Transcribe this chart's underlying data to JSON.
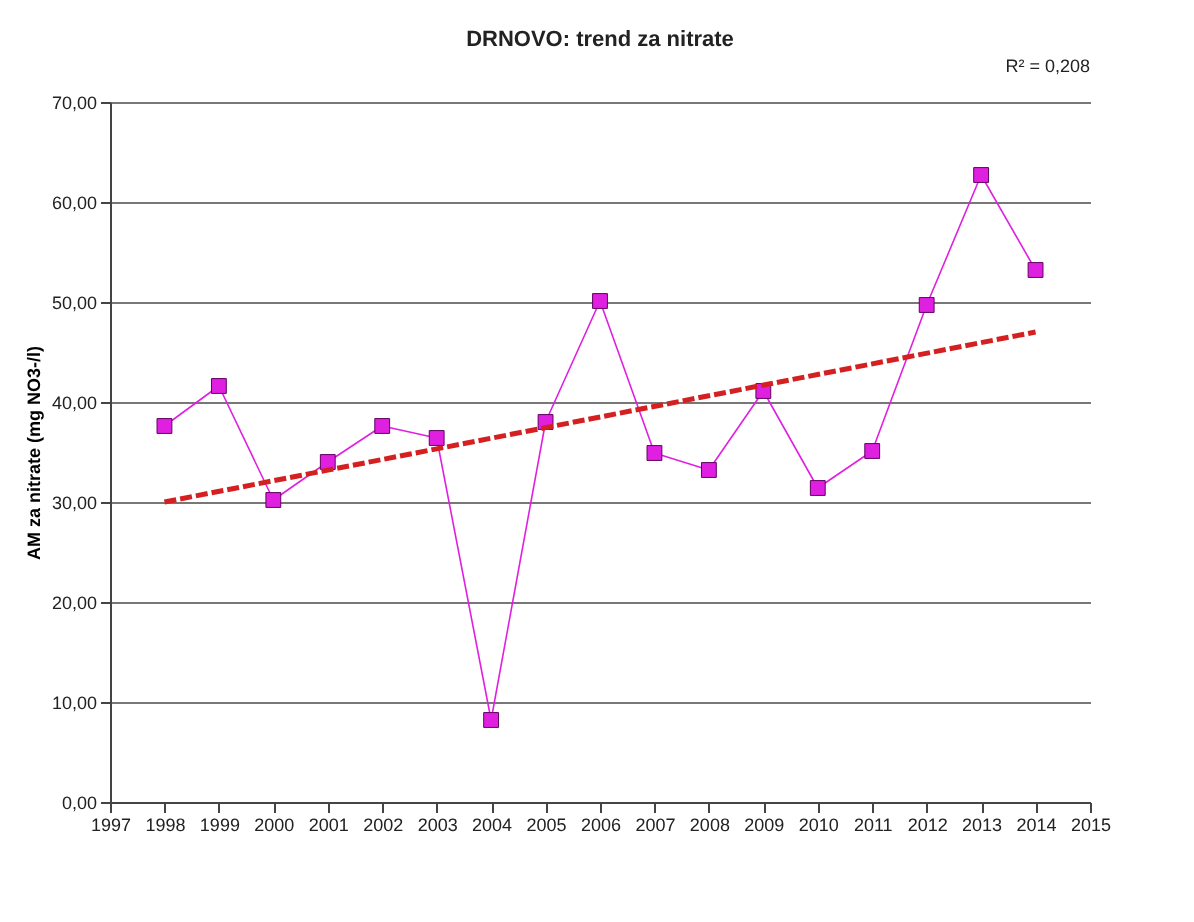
{
  "chart_data": {
    "type": "line",
    "title": "DRNOVO: trend za nitrate",
    "ylabel": "AM za nitrate (mg NO3-/l)",
    "annotations": [
      "R² = 0,208"
    ],
    "x": [
      1998,
      1999,
      2000,
      2001,
      2002,
      2003,
      2004,
      2005,
      2006,
      2007,
      2008,
      2009,
      2010,
      2011,
      2012,
      2013,
      2014
    ],
    "series": [
      {
        "color": "#e020e0",
        "marker": "square",
        "values": [
          37.6,
          41.6,
          30.2,
          34.0,
          37.6,
          36.4,
          8.2,
          38.0,
          50.1,
          34.9,
          33.2,
          41.1,
          31.4,
          35.1,
          49.7,
          62.7,
          53.2
        ]
      },
      {
        "type": "line",
        "color": "#d42020",
        "marker": "none",
        "line_style": "dashed",
        "x": [
          1998,
          2014
        ],
        "values": [
          30.0,
          47.0
        ]
      }
    ],
    "xlim": [
      1997,
      2015
    ],
    "xticks": [
      1997,
      1998,
      1999,
      2000,
      2001,
      2002,
      2003,
      2004,
      2005,
      2006,
      2007,
      2008,
      2009,
      2010,
      2011,
      2012,
      2013,
      2014,
      2015
    ],
    "ylim": [
      0,
      70
    ],
    "yticks": [
      {
        "value": 0,
        "label": "0,00"
      },
      {
        "value": 10,
        "label": "10,00"
      },
      {
        "value": 20,
        "label": "20,00"
      },
      {
        "value": 30,
        "label": "30,00"
      },
      {
        "value": 40,
        "label": "40,00"
      },
      {
        "value": 50,
        "label": "50,00"
      },
      {
        "value": 60,
        "label": "60,00"
      },
      {
        "value": 70,
        "label": "70,00"
      }
    ],
    "grid": "y"
  }
}
